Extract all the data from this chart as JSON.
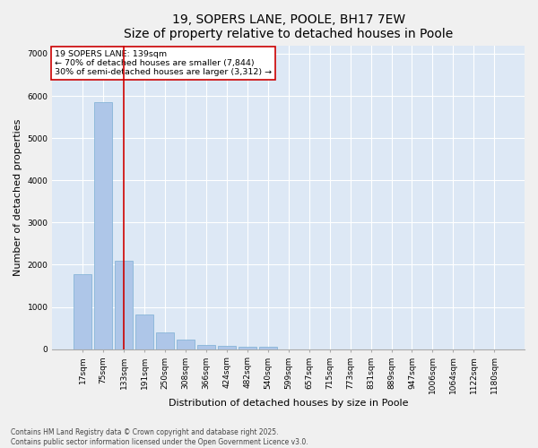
{
  "title": "19, SOPERS LANE, POOLE, BH17 7EW",
  "subtitle": "Size of property relative to detached houses in Poole",
  "xlabel": "Distribution of detached houses by size in Poole",
  "ylabel": "Number of detached properties",
  "categories": [
    "17sqm",
    "75sqm",
    "133sqm",
    "191sqm",
    "250sqm",
    "308sqm",
    "366sqm",
    "424sqm",
    "482sqm",
    "540sqm",
    "599sqm",
    "657sqm",
    "715sqm",
    "773sqm",
    "831sqm",
    "889sqm",
    "947sqm",
    "1006sqm",
    "1064sqm",
    "1122sqm",
    "1180sqm"
  ],
  "values": [
    1780,
    5850,
    2100,
    830,
    390,
    220,
    105,
    80,
    65,
    55,
    0,
    0,
    0,
    0,
    0,
    0,
    0,
    0,
    0,
    0,
    0
  ],
  "bar_color": "#aec6e8",
  "bar_edge_color": "#7bafd4",
  "vline_x": 2,
  "vline_color": "#cc0000",
  "annotation_text": "19 SOPERS LANE: 139sqm\n← 70% of detached houses are smaller (7,844)\n30% of semi-detached houses are larger (3,312) →",
  "annotation_box_color": "#ffffff",
  "annotation_box_edge_color": "#cc0000",
  "ylim": [
    0,
    7200
  ],
  "yticks": [
    0,
    1000,
    2000,
    3000,
    4000,
    5000,
    6000,
    7000
  ],
  "background_color": "#dde8f5",
  "fig_background_color": "#f0f0f0",
  "footer_line1": "Contains HM Land Registry data © Crown copyright and database right 2025.",
  "footer_line2": "Contains public sector information licensed under the Open Government Licence v3.0.",
  "title_fontsize": 10,
  "tick_fontsize": 6.5,
  "ylabel_fontsize": 8,
  "xlabel_fontsize": 8,
  "annotation_fontsize": 6.8,
  "footer_fontsize": 5.5
}
